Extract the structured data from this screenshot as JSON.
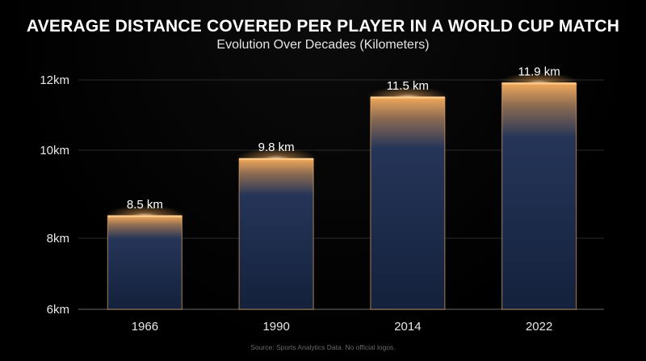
{
  "chart_data": {
    "type": "bar",
    "title": "AVERAGE DISTANCE COVERED PER PLAYER IN A WORLD CUP MATCH",
    "subtitle": "Evolution Over Decades (Kilometers)",
    "categories": [
      "1966",
      "1990",
      "2014",
      "2022"
    ],
    "values": [
      8.5,
      9.8,
      11.5,
      11.9
    ],
    "data_labels": [
      "8.5 km",
      "9.8 km",
      "11.5 km",
      "11.9 km"
    ],
    "y_ticks": [
      {
        "value": 6,
        "label": "6km"
      },
      {
        "value": 8,
        "label": "8km"
      },
      {
        "value": 10,
        "label": "10km"
      },
      {
        "value": 12,
        "label": "12km"
      }
    ],
    "ylim": [
      6,
      12
    ],
    "xlabel": "",
    "ylabel": "",
    "grid": true,
    "legend": "none",
    "source": "Source: Sports Analytics Data. No official logos.",
    "colors": {
      "background": "#000000",
      "bar_top": "#e89a4a",
      "bar_body": "#1b2a4a",
      "bar_outline": "#f2b36a",
      "gridline": "#2a2a2a"
    }
  }
}
